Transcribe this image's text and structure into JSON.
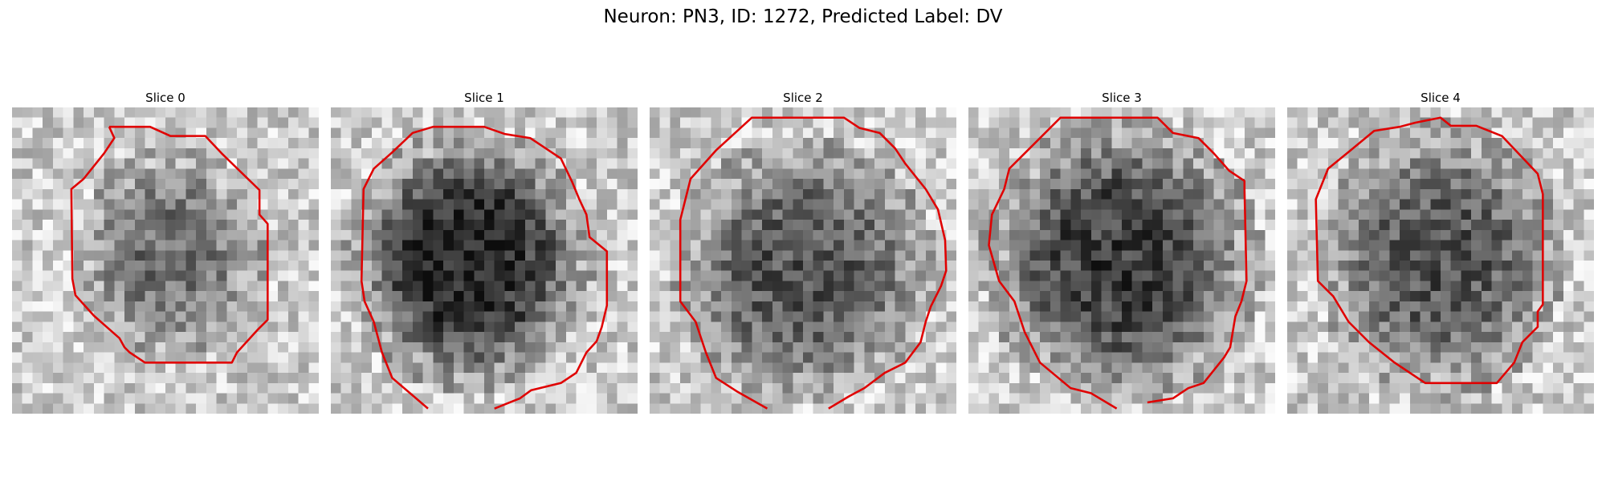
{
  "figure": {
    "title": "Neuron: PN3, ID: 1272, Predicted Label: DV",
    "contour_color": "#e00000"
  },
  "panels": [
    {
      "title": "Slice 0"
    },
    {
      "title": "Slice 1"
    },
    {
      "title": "Slice 2"
    },
    {
      "title": "Slice 3"
    },
    {
      "title": "Slice 4"
    }
  ]
}
